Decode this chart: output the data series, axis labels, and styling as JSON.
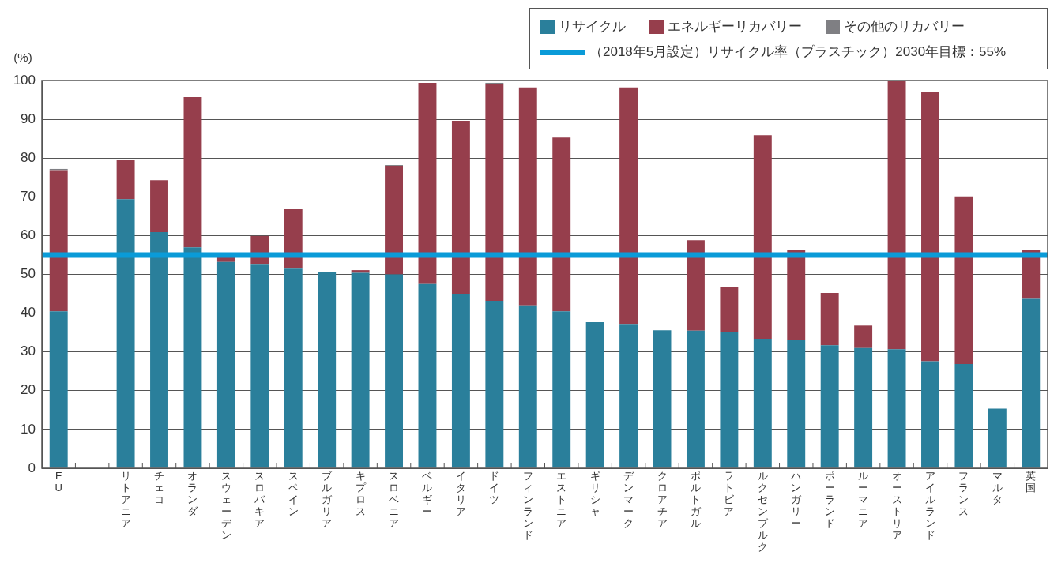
{
  "chart_data": {
    "type": "bar",
    "stacked": true,
    "ylabel": "(%)",
    "categories": [
      "EU",
      null,
      "リトアニア",
      "チェコ",
      "オランダ",
      "スウェーデン",
      "スロバキア",
      "スペイン",
      "ブルガリア",
      "キプロス",
      "スロベニア",
      "ベルギー",
      "イタリア",
      "ドイツ",
      "フィンランド",
      "エストニア",
      "ギリシャ",
      "デンマーク",
      "クロアチア",
      "ポルトガル",
      "ラトビア",
      "ルクセンブルク",
      "ハンガリー",
      "ポーランド",
      "ルーマニア",
      "オーストリア",
      "アイルランド",
      "フランス",
      "マルタ",
      "英国"
    ],
    "series": [
      {
        "name": "リサイクル",
        "color": "#2a7f9b",
        "values": [
          40.5,
          null,
          69.4,
          60.9,
          57.0,
          53.2,
          52.7,
          51.5,
          50.5,
          50.4,
          50.0,
          47.5,
          45.0,
          43.2,
          42.0,
          40.5,
          37.7,
          37.2,
          35.6,
          35.5,
          35.2,
          33.4,
          33.0,
          31.7,
          31.0,
          30.7,
          27.6,
          26.9,
          15.4,
          43.7
        ]
      },
      {
        "name": "エネルギーリカバリー",
        "color": "#963e4c",
        "values": [
          36.4,
          null,
          10.2,
          13.4,
          38.7,
          1.3,
          7.2,
          15.3,
          null,
          0.7,
          28.0,
          51.9,
          44.6,
          55.8,
          56.2,
          44.8,
          null,
          61.0,
          null,
          23.3,
          11.6,
          52.5,
          23.2,
          13.5,
          5.8,
          69.3,
          69.5,
          43.2,
          null,
          12.5
        ]
      },
      {
        "name": "その他のリカバリー",
        "color": "#7f7f83",
        "values": [
          0.3,
          null,
          null,
          null,
          null,
          null,
          null,
          null,
          null,
          null,
          0.2,
          null,
          null,
          0.4,
          null,
          null,
          null,
          null,
          null,
          null,
          null,
          null,
          null,
          null,
          null,
          null,
          null,
          null,
          null,
          null
        ]
      }
    ],
    "ylim": [
      0,
      100
    ],
    "yticks": [
      0,
      10,
      20,
      30,
      40,
      50,
      60,
      70,
      80,
      90,
      100
    ],
    "grid": "y",
    "legend": "top right",
    "ref_lines": [
      {
        "axis": "y",
        "value": 55,
        "label": "（2018年5月設定）リサイクル率（プラスチック）2030年目標：55%",
        "color": "#0a9bd8"
      }
    ]
  }
}
